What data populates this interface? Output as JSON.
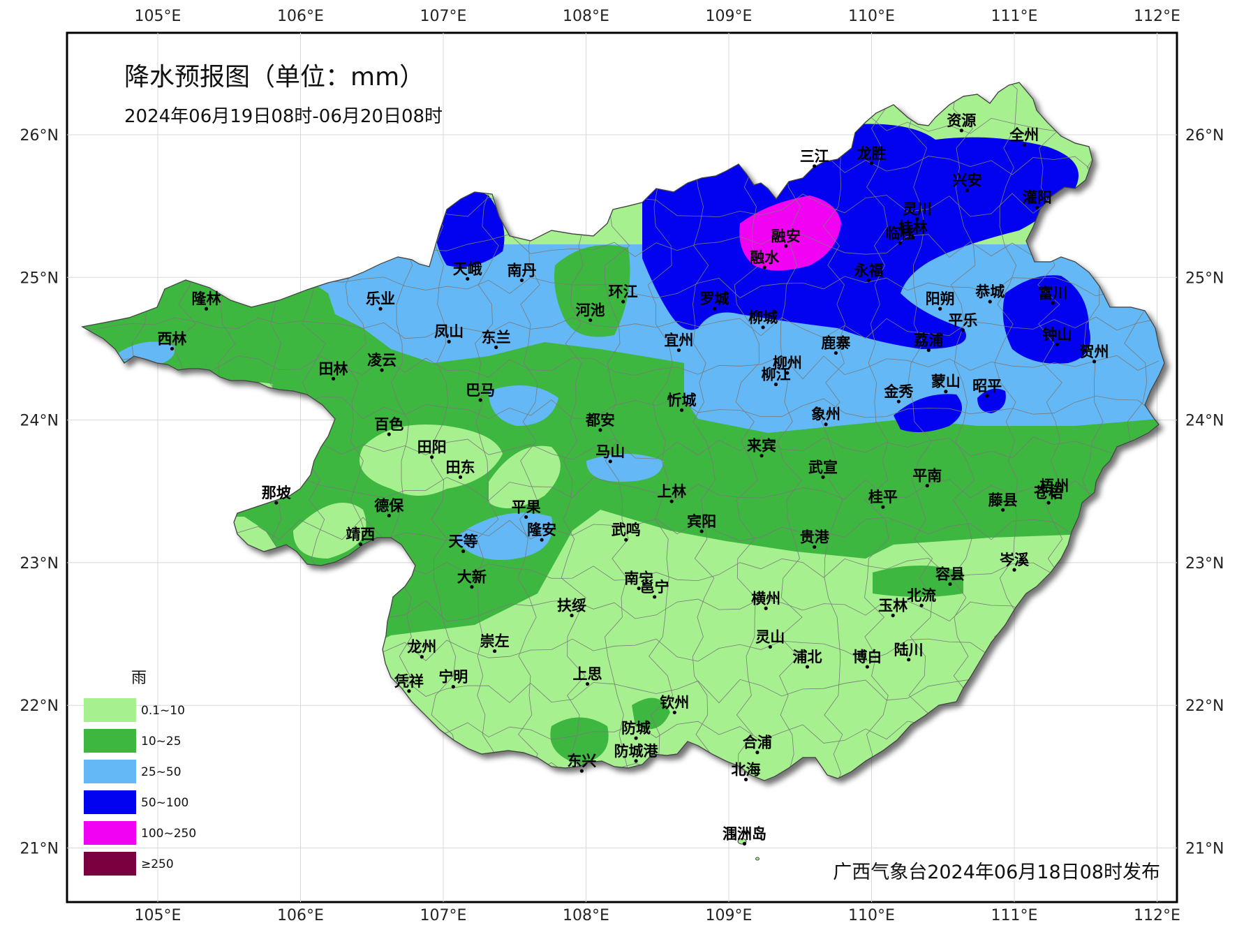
{
  "title": "降水预报图（单位：mm）",
  "subtitle": "2024年06月19日08时-06月20日08时",
  "footer": "广西气象台2024年06月18日08时发布",
  "axes": {
    "lon_ticks": [
      "105°E",
      "106°E",
      "107°E",
      "108°E",
      "109°E",
      "110°E",
      "111°E",
      "112°E"
    ],
    "lat_ticks": [
      "26°N",
      "25°N",
      "24°N",
      "23°N",
      "22°N",
      "21°N"
    ]
  },
  "legend": {
    "title": "雨",
    "items": [
      {
        "label": "0.1~10",
        "color": "#a6f08f"
      },
      {
        "label": "10~25",
        "color": "#3db73f"
      },
      {
        "label": "25~50",
        "color": "#63b8f5"
      },
      {
        "label": "50~100",
        "color": "#0202f0"
      },
      {
        "label": "100~250",
        "color": "#f202f2"
      },
      {
        "label": "≥250",
        "color": "#7a0040"
      }
    ]
  },
  "cities": [
    {
      "name": "资源",
      "lon": 110.63,
      "lat": 26.03
    },
    {
      "name": "全州",
      "lon": 111.07,
      "lat": 25.93
    },
    {
      "name": "三江",
      "lon": 109.6,
      "lat": 25.78
    },
    {
      "name": "龙胜",
      "lon": 110.0,
      "lat": 25.8
    },
    {
      "name": "兴安",
      "lon": 110.67,
      "lat": 25.61
    },
    {
      "name": "灌阳",
      "lon": 111.16,
      "lat": 25.49
    },
    {
      "name": "灵川",
      "lon": 110.32,
      "lat": 25.41
    },
    {
      "name": "桂林",
      "lon": 110.29,
      "lat": 25.28
    },
    {
      "name": "临桂",
      "lon": 110.2,
      "lat": 25.24
    },
    {
      "name": "融安",
      "lon": 109.4,
      "lat": 25.22
    },
    {
      "name": "融水",
      "lon": 109.25,
      "lat": 25.07
    },
    {
      "name": "永福",
      "lon": 109.98,
      "lat": 24.98
    },
    {
      "name": "恭城",
      "lon": 110.83,
      "lat": 24.83
    },
    {
      "name": "富川",
      "lon": 111.27,
      "lat": 24.82
    },
    {
      "name": "罗城",
      "lon": 108.9,
      "lat": 24.78
    },
    {
      "name": "阳朔",
      "lon": 110.48,
      "lat": 24.78
    },
    {
      "name": "平乐",
      "lon": 110.64,
      "lat": 24.63
    },
    {
      "name": "柳城",
      "lon": 109.24,
      "lat": 24.65
    },
    {
      "name": "钟山",
      "lon": 111.3,
      "lat": 24.53
    },
    {
      "name": "荔浦",
      "lon": 110.4,
      "lat": 24.49
    },
    {
      "name": "贺州",
      "lon": 111.56,
      "lat": 24.41
    },
    {
      "name": "宜州",
      "lon": 108.65,
      "lat": 24.49
    },
    {
      "name": "鹿寨",
      "lon": 109.75,
      "lat": 24.47
    },
    {
      "name": "柳州",
      "lon": 109.41,
      "lat": 24.33
    },
    {
      "name": "柳江",
      "lon": 109.33,
      "lat": 24.25
    },
    {
      "name": "金秀",
      "lon": 110.19,
      "lat": 24.13
    },
    {
      "name": "蒙山",
      "lon": 110.52,
      "lat": 24.2
    },
    {
      "name": "昭平",
      "lon": 110.81,
      "lat": 24.17
    },
    {
      "name": "象州",
      "lon": 109.68,
      "lat": 23.97
    },
    {
      "name": "隆林",
      "lon": 105.34,
      "lat": 24.78
    },
    {
      "name": "西林",
      "lon": 105.1,
      "lat": 24.5
    },
    {
      "name": "乐业",
      "lon": 106.56,
      "lat": 24.78
    },
    {
      "name": "天峨",
      "lon": 107.17,
      "lat": 24.99
    },
    {
      "name": "南丹",
      "lon": 107.55,
      "lat": 24.98
    },
    {
      "name": "环江",
      "lon": 108.26,
      "lat": 24.83
    },
    {
      "name": "河池",
      "lon": 108.03,
      "lat": 24.7
    },
    {
      "name": "凤山",
      "lon": 107.04,
      "lat": 24.55
    },
    {
      "name": "东兰",
      "lon": 107.37,
      "lat": 24.51
    },
    {
      "name": "田林",
      "lon": 106.23,
      "lat": 24.29
    },
    {
      "name": "凌云",
      "lon": 106.57,
      "lat": 24.35
    },
    {
      "name": "巴马",
      "lon": 107.26,
      "lat": 24.14
    },
    {
      "name": "都安",
      "lon": 108.1,
      "lat": 23.93
    },
    {
      "name": "忻城",
      "lon": 108.67,
      "lat": 24.07
    },
    {
      "name": "百色",
      "lon": 106.62,
      "lat": 23.9
    },
    {
      "name": "田阳",
      "lon": 106.92,
      "lat": 23.74
    },
    {
      "name": "田东",
      "lon": 107.12,
      "lat": 23.6
    },
    {
      "name": "马山",
      "lon": 108.17,
      "lat": 23.71
    },
    {
      "name": "来宾",
      "lon": 109.23,
      "lat": 23.75
    },
    {
      "name": "武宣",
      "lon": 109.66,
      "lat": 23.6
    },
    {
      "name": "平南",
      "lon": 110.39,
      "lat": 23.54
    },
    {
      "name": "梧州",
      "lon": 111.28,
      "lat": 23.47
    },
    {
      "name": "苍梧",
      "lon": 111.24,
      "lat": 23.42
    },
    {
      "name": "那坡",
      "lon": 105.83,
      "lat": 23.42
    },
    {
      "name": "德保",
      "lon": 106.62,
      "lat": 23.33
    },
    {
      "name": "平果",
      "lon": 107.58,
      "lat": 23.32
    },
    {
      "name": "上林",
      "lon": 108.6,
      "lat": 23.43
    },
    {
      "name": "桂平",
      "lon": 110.08,
      "lat": 23.39
    },
    {
      "name": "藤县",
      "lon": 110.92,
      "lat": 23.37
    },
    {
      "name": "靖西",
      "lon": 106.42,
      "lat": 23.13
    },
    {
      "name": "天等",
      "lon": 107.14,
      "lat": 23.08
    },
    {
      "name": "隆安",
      "lon": 107.69,
      "lat": 23.16
    },
    {
      "name": "武鸣",
      "lon": 108.28,
      "lat": 23.16
    },
    {
      "name": "宾阳",
      "lon": 108.81,
      "lat": 23.22
    },
    {
      "name": "贵港",
      "lon": 109.6,
      "lat": 23.11
    },
    {
      "name": "岑溪",
      "lon": 111.0,
      "lat": 22.95
    },
    {
      "name": "大新",
      "lon": 107.2,
      "lat": 22.83
    },
    {
      "name": "容县",
      "lon": 110.55,
      "lat": 22.85
    },
    {
      "name": "南宁",
      "lon": 108.37,
      "lat": 22.82
    },
    {
      "name": "邕宁",
      "lon": 108.48,
      "lat": 22.76
    },
    {
      "name": "横州",
      "lon": 109.26,
      "lat": 22.68
    },
    {
      "name": "玉林",
      "lon": 110.15,
      "lat": 22.63
    },
    {
      "name": "北流",
      "lon": 110.35,
      "lat": 22.7
    },
    {
      "name": "扶绥",
      "lon": 107.9,
      "lat": 22.63
    },
    {
      "name": "崇左",
      "lon": 107.36,
      "lat": 22.38
    },
    {
      "name": "龙州",
      "lon": 106.85,
      "lat": 22.34
    },
    {
      "name": "灵山",
      "lon": 109.29,
      "lat": 22.41
    },
    {
      "name": "浦北",
      "lon": 109.55,
      "lat": 22.27
    },
    {
      "name": "博白",
      "lon": 109.97,
      "lat": 22.27
    },
    {
      "name": "陆川",
      "lon": 110.26,
      "lat": 22.32
    },
    {
      "name": "上思",
      "lon": 108.01,
      "lat": 22.15
    },
    {
      "name": "凭祥",
      "lon": 106.76,
      "lat": 22.1
    },
    {
      "name": "宁明",
      "lon": 107.07,
      "lat": 22.13
    },
    {
      "name": "钦州",
      "lon": 108.62,
      "lat": 21.95
    },
    {
      "name": "防城",
      "lon": 108.35,
      "lat": 21.77
    },
    {
      "name": "防城港",
      "lon": 108.35,
      "lat": 21.61
    },
    {
      "name": "东兴",
      "lon": 107.97,
      "lat": 21.54
    },
    {
      "name": "合浦",
      "lon": 109.2,
      "lat": 21.67
    },
    {
      "name": "北海",
      "lon": 109.12,
      "lat": 21.48
    },
    {
      "name": "涠洲岛",
      "lon": 109.11,
      "lat": 21.03
    }
  ]
}
